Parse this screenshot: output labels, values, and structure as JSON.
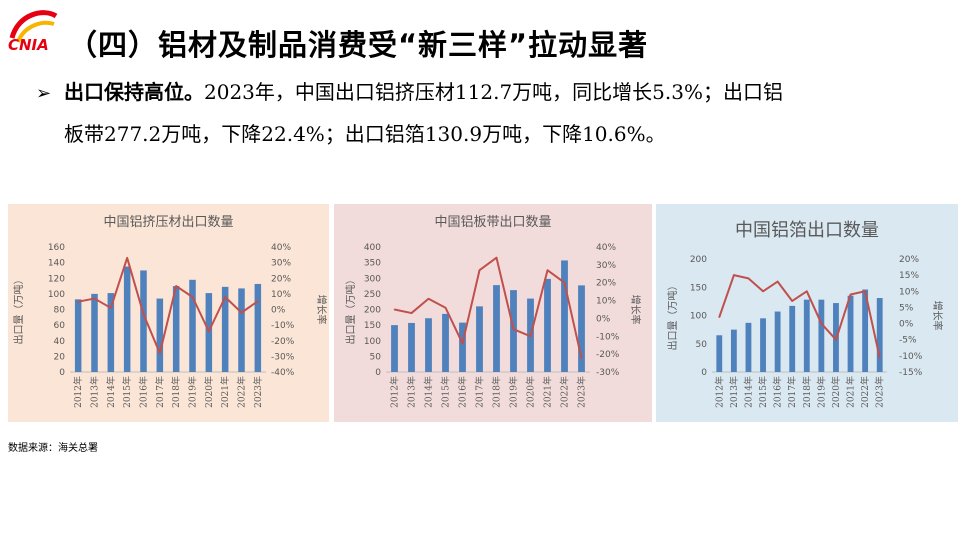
{
  "slide": {
    "logo_text": "CNIA",
    "title": "（四）铝材及制品消费受“新三样”拉动显著",
    "bullet": {
      "lead": "出口保持高位。",
      "year": "2023",
      "t1": "年，中国出口铝挤压材",
      "n1": "112.7",
      "t2": "万吨，同比增长",
      "n2": "5.3%",
      "t3": "；出口铝",
      "t4": "板带",
      "n3": "277.2",
      "t5": "万吨，下降",
      "n4": "22.4%",
      "t6": "；出口铝箔",
      "n5": "130.9",
      "t7": "万吨，下降",
      "n6": "10.6%",
      "t8": "。"
    },
    "source": "数据来源：海关总署"
  },
  "colors": {
    "bar": "#4f81bd",
    "line": "#c0504d",
    "panel1_bg": "#fbe5d6",
    "panel2_bg": "#f2dcdb",
    "panel3_bg": "#dae8f1"
  },
  "chart_data": [
    {
      "type": "bar+line",
      "title": "中国铝挤压材出口数量",
      "ylabel": "出口量（万吨）",
      "y2label": "增长率",
      "categories": [
        "2012年",
        "2013年",
        "2014年",
        "2015年",
        "2016年",
        "2017年",
        "2018年",
        "2019年",
        "2020年",
        "2021年",
        "2022年",
        "2023年"
      ],
      "series": [
        {
          "kind": "bar",
          "axis": "left",
          "values": [
            93,
            100,
            101,
            135,
            130,
            94,
            110,
            118,
            101,
            109,
            107,
            112.7
          ]
        },
        {
          "kind": "line",
          "axis": "right",
          "values": [
            5,
            7,
            1,
            33,
            -3,
            -28,
            15,
            8,
            -14,
            8,
            -2,
            5.3
          ]
        }
      ],
      "ylim": [
        0,
        160
      ],
      "yticks": [
        "0",
        "20",
        "40",
        "60",
        "80",
        "100",
        "120",
        "140",
        "160"
      ],
      "y2lim": [
        -40,
        40
      ],
      "y2ticks": [
        "-40%",
        "-30%",
        "-20%",
        "-10%",
        "0%",
        "10%",
        "20%",
        "30%",
        "40%"
      ]
    },
    {
      "type": "bar+line",
      "title": "中国铝板带出口数量",
      "ylabel": "出口量（万吨）",
      "y2label": "增长率",
      "categories": [
        "2012年",
        "2013年",
        "2014年",
        "2015年",
        "2016年",
        "2017年",
        "2018年",
        "2019年",
        "2020年",
        "2021年",
        "2022年",
        "2023年"
      ],
      "series": [
        {
          "kind": "bar",
          "axis": "left",
          "values": [
            150,
            157,
            172,
            186,
            158,
            210,
            278,
            262,
            235,
            298,
            357,
            277.2
          ]
        },
        {
          "kind": "line",
          "axis": "right",
          "values": [
            5,
            3,
            11,
            6,
            -14,
            27,
            34,
            -6,
            -10,
            27,
            20,
            -22.4
          ]
        }
      ],
      "ylim": [
        0,
        400
      ],
      "yticks": [
        "0",
        "50",
        "100",
        "150",
        "200",
        "250",
        "300",
        "350",
        "400"
      ],
      "y2lim": [
        -30,
        40
      ],
      "y2ticks": [
        "-30%",
        "-20%",
        "-10%",
        "0%",
        "10%",
        "20%",
        "30%",
        "40%"
      ]
    },
    {
      "type": "bar+line",
      "title": "中国铝箔出口数量",
      "ylabel": "出口量（万吨）",
      "y2label": "增长率",
      "categories": [
        "2012年",
        "2013年",
        "2014年",
        "2015年",
        "2016年",
        "2017年",
        "2018年",
        "2019年",
        "2020年",
        "2021年",
        "2022年",
        "2023年"
      ],
      "series": [
        {
          "kind": "bar",
          "axis": "left",
          "values": [
            65,
            75,
            87,
            95,
            107,
            117,
            128,
            128,
            122,
            135,
            146,
            130.9
          ]
        },
        {
          "kind": "line",
          "axis": "right",
          "values": [
            2,
            15,
            14,
            10,
            13,
            7,
            10,
            0,
            -5,
            9,
            10,
            -10.6
          ]
        }
      ],
      "ylim": [
        0,
        200
      ],
      "yticks": [
        "0",
        "50",
        "100",
        "150",
        "200"
      ],
      "y2lim": [
        -15,
        20
      ],
      "y2ticks": [
        "-15%",
        "-10%",
        "-5%",
        "0%",
        "5%",
        "10%",
        "15%",
        "20%"
      ]
    }
  ]
}
